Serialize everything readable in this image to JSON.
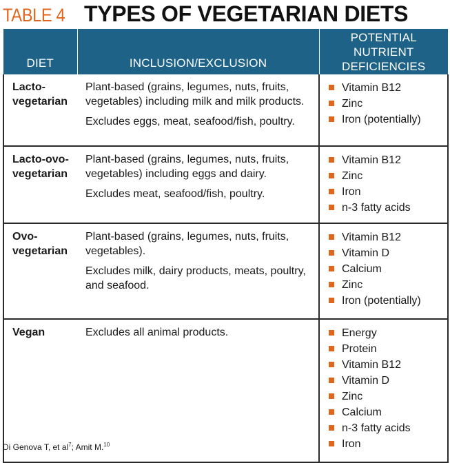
{
  "title": {
    "label": "TABLE 4",
    "text": "TYPES OF VEGETARIAN DIETS"
  },
  "colors": {
    "accent": "#e0661e",
    "header_bg": "#1e6387"
  },
  "table": {
    "headers": [
      "DIET",
      "INCLUSION/EXCLUSION",
      "POTENTIAL NUTRIENT DEFICIENCIES"
    ],
    "rows": [
      {
        "diet": "Lacto-vegetarian",
        "inclusion": [
          "Plant-based (grains, legumes, nuts, fruits, vegetables) including milk and milk products.",
          "Excludes eggs, meat, seafood/fish, poultry."
        ],
        "deficiencies": [
          "Vitamin B12",
          "Zinc",
          "Iron (potentially)"
        ]
      },
      {
        "diet": "Lacto-ovo-vegetarian",
        "inclusion": [
          "Plant-based (grains, legumes, nuts, fruits, vegetables) including eggs and dairy.",
          "Excludes meat, seafood/fish, poultry."
        ],
        "deficiencies": [
          "Vitamin B12",
          "Zinc",
          "Iron",
          "n-3 fatty acids"
        ]
      },
      {
        "diet": "Ovo-vegetarian",
        "inclusion": [
          "Plant-based (grains, legumes, nuts, fruits, vegetables).",
          "Excludes milk, dairy products, meats, poultry, and seafood."
        ],
        "deficiencies": [
          "Vitamin B12",
          "Vitamin D",
          "Calcium",
          "Zinc",
          "Iron (potentially)"
        ]
      },
      {
        "diet": "Vegan",
        "inclusion": [
          "Excludes all animal products."
        ],
        "deficiencies": [
          "Energy",
          "Protein",
          "Vitamin B12",
          "Vitamin D",
          "Zinc",
          "Calcium",
          "n-3 fatty acids",
          "Iron"
        ]
      }
    ]
  },
  "footnote": {
    "text1": "Di Genova T, et al",
    "sup1": "7",
    "text2": "; Amit M.",
    "sup2": "10"
  }
}
